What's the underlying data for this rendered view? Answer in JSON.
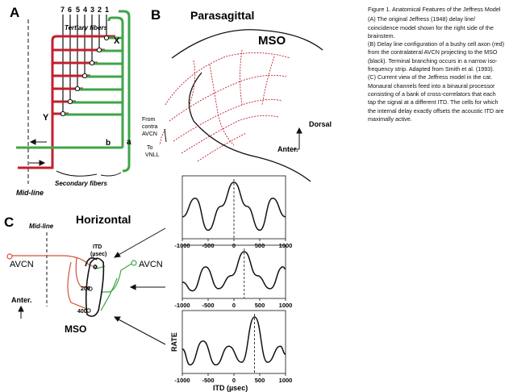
{
  "figure": {
    "panel_a": {
      "letter": "A",
      "tap_numbers": [
        "7",
        "6",
        "5",
        "4",
        "3",
        "2",
        "1"
      ],
      "tertiary_label": "Tertiary fibers",
      "secondary_label": "Secondary fibers",
      "midline_label": "Mid-line",
      "x_label": "X",
      "y_label": "Y",
      "a_label": "a",
      "b_label": "b"
    },
    "panel_b": {
      "letter": "B",
      "title": "Parasagittal",
      "mso_label": "MSO",
      "from_label_1": "From",
      "from_label_2": "contra",
      "from_label_3": "AVCN",
      "to_label_1": "To",
      "to_label_2": "VNLL",
      "dorsal_label": "Dorsal",
      "anter_label": "Anter."
    },
    "panel_c": {
      "letter": "C",
      "title": "Horizontal",
      "midline_label": "Mid-line",
      "avcn_left": "AVCN",
      "avcn_right": "AVCN",
      "itd_label_1": "ITD",
      "itd_label_2": "(µsec)",
      "itd_0": "0",
      "itd_200": "200",
      "itd_400": "400",
      "anter_label": "Anter.",
      "mso_label": "MSO"
    },
    "plots": {
      "x_ticks": [
        "-1000",
        "-500",
        "0",
        "500",
        "1000"
      ],
      "ylabel": "RATE",
      "xlabel": "ITD (µsec)"
    }
  },
  "caption": {
    "title": "Figure 1.  Anatomical Features of the Jeffress Model",
    "para_a": "(A) The original Jeffress (1948) delay line/ coincidence model shown for the right side of the brainstem.",
    "para_b": "(B) Delay line configuration of a bushy cell axon (red) from the contralateral AVCN projecting to the MSO (black). Terminal branching occurs in a narrow iso-frequency strip. Adapted from Smith et al. (1993).",
    "para_c": "(C) Current view of the Jeffress model in the cat. Monaural channels feed into a binaural processor consisting of a bank of cross-correlators that each tap the signal at a different ITD. The cells for which the internal delay exactly offsets the acoustic ITD are maximally active."
  },
  "chart_data": [
    {
      "type": "line",
      "x": [
        -1000,
        -750,
        -500,
        -250,
        0,
        250,
        500,
        750,
        1000
      ],
      "series": [
        {
          "values": [
            0.35,
            0.7,
            0.1,
            0.55,
            1.0,
            0.55,
            0.1,
            0.7,
            0.35
          ]
        }
      ],
      "xlim": [
        -1000,
        1000
      ],
      "peak_itd": 0
    },
    {
      "type": "line",
      "x": [
        -1000,
        -800,
        -550,
        -300,
        -50,
        200,
        450,
        700,
        950,
        1000
      ],
      "series": [
        {
          "values": [
            0.3,
            0.1,
            0.65,
            0.15,
            0.45,
            1.0,
            0.45,
            0.15,
            0.65,
            0.6
          ]
        }
      ],
      "xlim": [
        -1000,
        1000
      ],
      "peak_itd": 200
    },
    {
      "type": "line",
      "x": [
        -1000,
        -850,
        -600,
        -350,
        -100,
        150,
        400,
        650,
        900,
        1000
      ],
      "series": [
        {
          "values": [
            0.4,
            0.1,
            0.55,
            0.1,
            0.45,
            0.15,
            1.0,
            0.15,
            0.45,
            0.3
          ]
        }
      ],
      "xlim": [
        -1000,
        1000
      ],
      "peak_itd": 400,
      "ylabel": "RATE",
      "xlabel": "ITD (µsec)"
    }
  ]
}
